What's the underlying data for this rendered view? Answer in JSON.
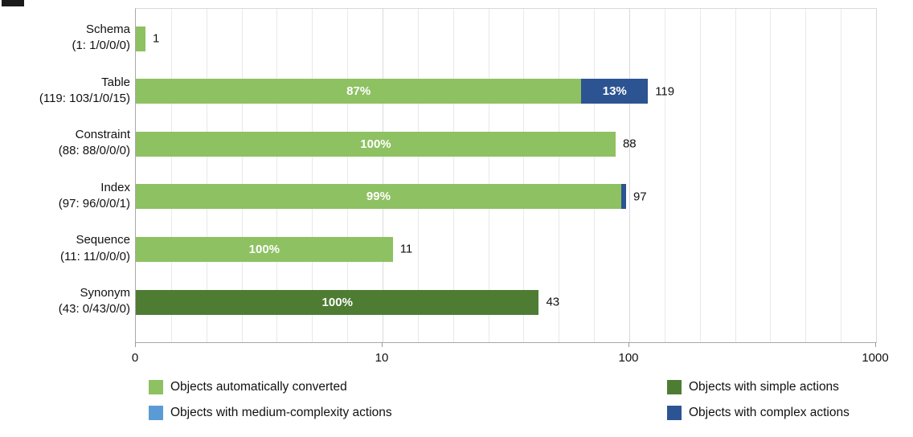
{
  "chart_data": {
    "type": "bar",
    "orientation": "horizontal",
    "x_scale": "log",
    "x_ticks": [
      "0",
      "10",
      "100",
      "1000"
    ],
    "x_range_decades": 3,
    "grid": true,
    "legend_position": "bottom",
    "series": [
      {
        "id": "auto",
        "name": "Objects automatically converted",
        "color": "#8ec162"
      },
      {
        "id": "simple",
        "name": "Objects with simple actions",
        "color": "#4e7c33"
      },
      {
        "id": "medium",
        "name": "Objects with medium-complexity actions",
        "color": "#5b9bd5"
      },
      {
        "id": "complex",
        "name": "Objects with complex actions",
        "color": "#2d5492"
      }
    ],
    "categories": [
      {
        "label": "Schema",
        "sublabel": "(1: 1/0/0/0)",
        "total": 1,
        "value_label": "1",
        "segments": [
          {
            "series": "auto",
            "pct": 100,
            "pct_label": ""
          }
        ]
      },
      {
        "label": "Table",
        "sublabel": "(119: 103/1/0/15)",
        "total": 119,
        "value_label": "119",
        "segments": [
          {
            "series": "auto",
            "pct": 87,
            "pct_label": "87%"
          },
          {
            "series": "complex",
            "pct": 13,
            "pct_label": "13%"
          }
        ]
      },
      {
        "label": "Constraint",
        "sublabel": "(88: 88/0/0/0)",
        "total": 88,
        "value_label": "88",
        "segments": [
          {
            "series": "auto",
            "pct": 100,
            "pct_label": "100%"
          }
        ]
      },
      {
        "label": "Index",
        "sublabel": "(97: 96/0/0/1)",
        "total": 97,
        "value_label": "97",
        "segments": [
          {
            "series": "auto",
            "pct": 99,
            "pct_label": "99%"
          },
          {
            "series": "complex",
            "pct": 1,
            "pct_label": ""
          }
        ]
      },
      {
        "label": "Sequence",
        "sublabel": "(11: 11/0/0/0)",
        "total": 11,
        "value_label": "11",
        "segments": [
          {
            "series": "auto",
            "pct": 100,
            "pct_label": "100%"
          }
        ]
      },
      {
        "label": "Synonym",
        "sublabel": "(43: 0/43/0/0)",
        "total": 43,
        "value_label": "43",
        "segments": [
          {
            "series": "simple",
            "pct": 100,
            "pct_label": "100%"
          }
        ]
      }
    ],
    "legend": {
      "items": [
        {
          "series": "auto",
          "label": "Objects automatically converted",
          "row": 0,
          "col": 0
        },
        {
          "series": "simple",
          "label": "Objects with simple actions",
          "row": 0,
          "col": 1
        },
        {
          "series": "medium",
          "label": "Objects with medium-complexity actions",
          "row": 1,
          "col": 0
        },
        {
          "series": "complex",
          "label": "Objects with complex actions",
          "row": 1,
          "col": 1
        }
      ]
    }
  }
}
